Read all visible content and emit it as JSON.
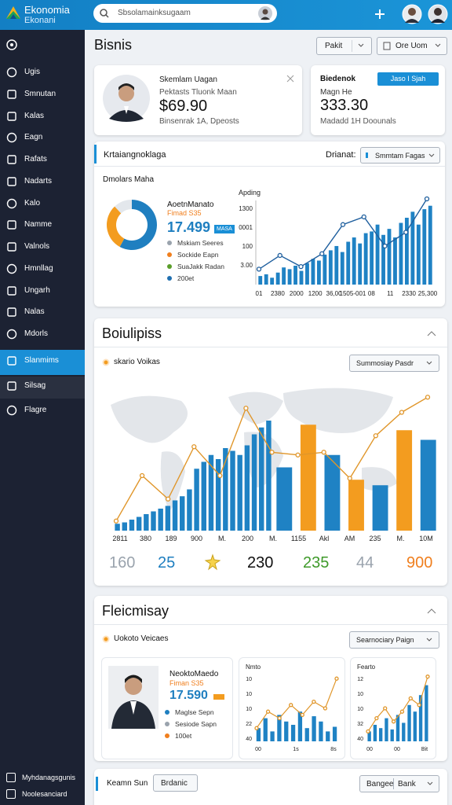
{
  "app": {
    "logo_title": "Ekonomia",
    "logo_subtitle": "Ekonani",
    "search": "Sbsolamainksugaam"
  },
  "sidebar": {
    "items": [
      "Ugis",
      "Smnutan",
      "Kalas",
      "Eagn",
      "Rafats",
      "Nadarts",
      "Kalo",
      "Namme",
      "Valnols",
      "Hmnllag",
      "Ungarh",
      "Nalas",
      "Mdorls",
      "Slanmims",
      "Silsag",
      "Flagre"
    ],
    "active": 13,
    "footer": [
      "Myhdanagsgunis",
      "Noolesanciard"
    ]
  },
  "header": {
    "title": "Bisnis",
    "filter": "Pakit",
    "button": "Ore Uom"
  },
  "profile_card": {
    "name": "Skemlam Uagan",
    "subtitle": "Pektasts Tluonk Maan",
    "amount": "$69.90",
    "note": "Binsenrak 1A, Dpeosts"
  },
  "balance_card": {
    "title": "Biedenok",
    "button": "Jaso I Sjah",
    "label": "Magn He",
    "amount": "333.30",
    "note": "Madadd 1H Doounals"
  },
  "overview": {
    "title": "Krtaiangnoklaga",
    "filter_label": "Drianat:",
    "filter": "Smmtam Fagas",
    "donut_title": "Dmolars Maha",
    "donut": {
      "values": [
        58,
        30,
        12
      ],
      "colors": [
        "#1f7fc0",
        "#f39c1f",
        "#e3e7ec"
      ]
    },
    "stat_title": "AoetnManato",
    "stat_badge": "Fimad S35",
    "stat_value": "17.499",
    "stat_tag": "MASA",
    "legend": [
      {
        "name": "Mskiam  Seeres",
        "color": "#9aa3ad"
      },
      {
        "name": "Sockide  Eapn",
        "color": "#f07f1e"
      },
      {
        "name": "SuaJakk  Radan",
        "color": "#5a9e2a"
      },
      {
        "name": "200et",
        "color": "#1f6fb0"
      }
    ],
    "chart": {
      "title": "Apding",
      "ylim": [
        0,
        100
      ],
      "y_labels": [
        "1300",
        "0001",
        "100",
        "3.00"
      ],
      "x_labels": [
        "01",
        "2380",
        "2000",
        "1200",
        "36,00",
        "1505-001",
        "08",
        "11",
        "2330",
        "25,300"
      ],
      "bars": [
        10,
        12,
        8,
        14,
        20,
        18,
        22,
        16,
        25,
        30,
        28,
        35,
        40,
        45,
        38,
        50,
        55,
        48,
        60,
        62,
        70,
        58,
        65,
        55,
        72,
        78,
        85,
        70,
        88,
        92
      ],
      "bar_color": "#1f82c4",
      "line": [
        18,
        34,
        21,
        36,
        70,
        79,
        45,
        61,
        100
      ],
      "line_color": "#1f5f9e"
    }
  },
  "map_card": {
    "title": "Boiulipiss",
    "subtitle": "skario Voikas",
    "filter": "Summosiay Pasdr",
    "chart": {
      "ylim": [
        0,
        100
      ],
      "bars": [
        5,
        6,
        8,
        10,
        12,
        14,
        16,
        18,
        22,
        25,
        30,
        45,
        50,
        55,
        52,
        60,
        58,
        55,
        62,
        70,
        75,
        80
      ],
      "bar_color": "#1f82c4",
      "bars_wide": [
        46,
        77,
        55,
        37,
        33,
        73,
        66
      ],
      "bars_wide_colors": [
        "#1f82c4",
        "#f39c1f",
        "#1f82c4",
        "#f39c1f",
        "#1f82c4",
        "#f39c1f",
        "#1f82c4"
      ],
      "line": [
        7,
        40,
        23,
        61,
        40,
        89,
        57,
        55,
        57,
        38,
        69,
        86,
        97
      ],
      "line_color": "#e0962a",
      "x_labels": [
        "2811",
        "380",
        "189",
        "900",
        "M.",
        "200",
        "M.",
        "1155",
        "Akl",
        "AM",
        "235",
        "M.",
        "10M"
      ]
    },
    "stats": [
      {
        "text": "160",
        "color": "#9aa3ad"
      },
      {
        "text": "25",
        "color": "#1f7fc0"
      },
      {
        "text": "230",
        "color": "#111111"
      },
      {
        "text": "235",
        "color": "#3f9a2a"
      },
      {
        "text": "44",
        "color": "#9aa3ad"
      },
      {
        "text": "900",
        "color": "#f07f1e"
      }
    ]
  },
  "detail_card": {
    "title": "Fleicmisay",
    "subtitle": "Uokoto Veicaes",
    "filter": "Searnociary Paign",
    "person": {
      "name": "NeoktoMaedo",
      "badge": "Fiman S35",
      "value": "17.590",
      "legend": [
        {
          "name": "Maglse  Sepn",
          "color": "#1f7fc0"
        },
        {
          "name": "Sesiode  Sapn",
          "color": "#9aa3ad"
        },
        {
          "name": "100et",
          "color": "#f07f1e"
        }
      ]
    },
    "charts": [
      {
        "title": "Nmto",
        "ylim": [
          0,
          100
        ],
        "y_labels": [
          "10",
          "10",
          "10",
          "22",
          "40"
        ],
        "x_labels": [
          "00",
          "1s",
          "8s"
        ],
        "bars": [
          20,
          35,
          15,
          40,
          30,
          25,
          45,
          20,
          38,
          30,
          15,
          22
        ],
        "line": [
          20,
          45,
          35,
          55,
          40,
          60,
          50,
          95
        ]
      },
      {
        "title": "Fearto",
        "ylim": [
          0,
          100
        ],
        "y_labels": [
          "12",
          "10",
          "10",
          "32",
          "40"
        ],
        "x_labels": [
          "00",
          "00",
          "Bit"
        ],
        "bars": [
          15,
          25,
          20,
          35,
          18,
          40,
          28,
          55,
          45,
          70,
          85
        ],
        "line": [
          15,
          35,
          50,
          30,
          45,
          65,
          55,
          98
        ]
      }
    ],
    "bar_color": "#1f82c4",
    "line_color": "#e0962a"
  },
  "footer_card": {
    "title": "Keamn Sun",
    "tag": "Brdanic",
    "filter": "Bangee",
    "filter_value": "Bank"
  }
}
